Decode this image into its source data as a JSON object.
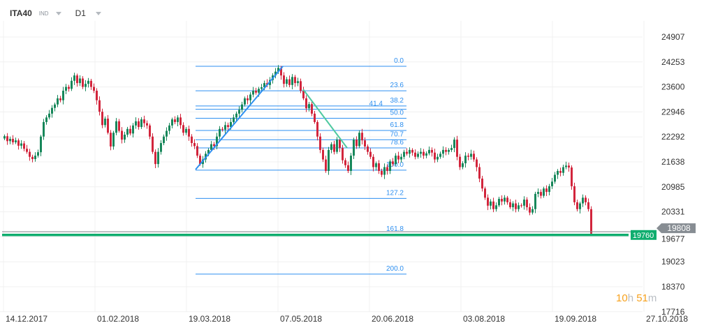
{
  "header": {
    "symbol": "ITA40",
    "market": "IND",
    "timeframe": "D1"
  },
  "timer": {
    "hours": "10",
    "h_unit": "h",
    "minutes": "51",
    "m_unit": "m"
  },
  "price_tags": {
    "bid": "19760",
    "last": "19808"
  },
  "colors": {
    "up": "#17875a",
    "down": "#d2253c",
    "fib": "#2d8ff0",
    "trend2": "#4fc9a0",
    "bid_line": "#0fad6e",
    "last_line": "#888e94",
    "timer": "#f7a21e"
  },
  "chart_data": {
    "type": "candlestick",
    "symbol": "ITA40",
    "timeframe": "D1",
    "y_ticks": [
      "24907",
      "24253",
      "23600",
      "22946",
      "22292",
      "21638",
      "20985",
      "20331",
      "19677",
      "19023",
      "18370",
      "17716"
    ],
    "ylim": [
      17716,
      24907
    ],
    "x_ticks": [
      "14.12.2017",
      "01.02.2018",
      "19.03.2018",
      "07.05.2018",
      "20.06.2018",
      "03.08.2018",
      "19.09.2018",
      "27.10.2018"
    ],
    "grid": true,
    "first_open": 22250,
    "close": [
      22310,
      22180,
      22240,
      22150,
      22200,
      22060,
      22120,
      21980,
      21900,
      21770,
      21710,
      21800,
      21890,
      22300,
      22680,
      22800,
      22900,
      23050,
      23140,
      23300,
      23250,
      23500,
      23600,
      23550,
      23760,
      23900,
      23700,
      23820,
      23600,
      23680,
      23760,
      23600,
      23500,
      23250,
      22950,
      22600,
      22770,
      22400,
      22040,
      22400,
      22700,
      22450,
      22220,
      22350,
      22500,
      22380,
      22590,
      22700,
      22550,
      22750,
      22650,
      22590,
      22300,
      21900,
      21580,
      21900,
      22130,
      22300,
      22450,
      22590,
      22750,
      22680,
      22800,
      22600,
      22400,
      22500,
      22300,
      22130,
      22050,
      21800,
      21580,
      21700,
      21850,
      21950,
      22100,
      22050,
      22300,
      22500,
      22480,
      22600,
      22550,
      22680,
      22800,
      22900,
      23000,
      23140,
      23300,
      23250,
      23400,
      23500,
      23450,
      23550,
      23590,
      23700,
      23650,
      23780,
      23900,
      24000,
      24100,
      23900,
      23680,
      23800,
      23650,
      23860,
      23700,
      23750,
      23500,
      23300,
      23040,
      23150,
      22900,
      22680,
      22300,
      21950,
      21700,
      21400,
      21950,
      22100,
      21900,
      22220,
      22000,
      21680,
      21550,
      21400,
      21800,
      22220,
      22050,
      22400,
      22200,
      22040,
      21900,
      21770,
      21500,
      21600,
      21400,
      21300,
      21500,
      21400,
      21650,
      21580,
      21800,
      21700,
      21770,
      21900,
      21850,
      21950,
      21880,
      21770,
      21850,
      21900,
      21800,
      21860,
      21950,
      21880,
      21700,
      21770,
      21850,
      21950,
      21900,
      21950,
      22000,
      22220,
      21770,
      21500,
      21600,
      21800,
      21770,
      21850,
      21700,
      21500,
      21200,
      20940,
      20700,
      20490,
      20600,
      20400,
      20500,
      20670,
      20600,
      20700,
      20580,
      20450,
      20550,
      20400,
      20500,
      20490,
      20650,
      20450,
      20310,
      20400,
      20800,
      20850,
      20750,
      20940,
      20850,
      21000,
      21120,
      21300,
      21400,
      21350,
      21500,
      21540,
      21490,
      21000,
      20580,
      20400,
      20550,
      20700,
      20580,
      20400,
      19760
    ],
    "fibonacci": {
      "levels": [
        "0.0",
        "23.6",
        "38.2",
        "41.4",
        "50.0",
        "61.8",
        "70.7",
        "78.6",
        "100.0",
        "127.2",
        "161.8",
        "200.0"
      ],
      "price_0": 24140,
      "price_100": 21420
    },
    "bid_price": 19760,
    "last_price": 19808
  }
}
